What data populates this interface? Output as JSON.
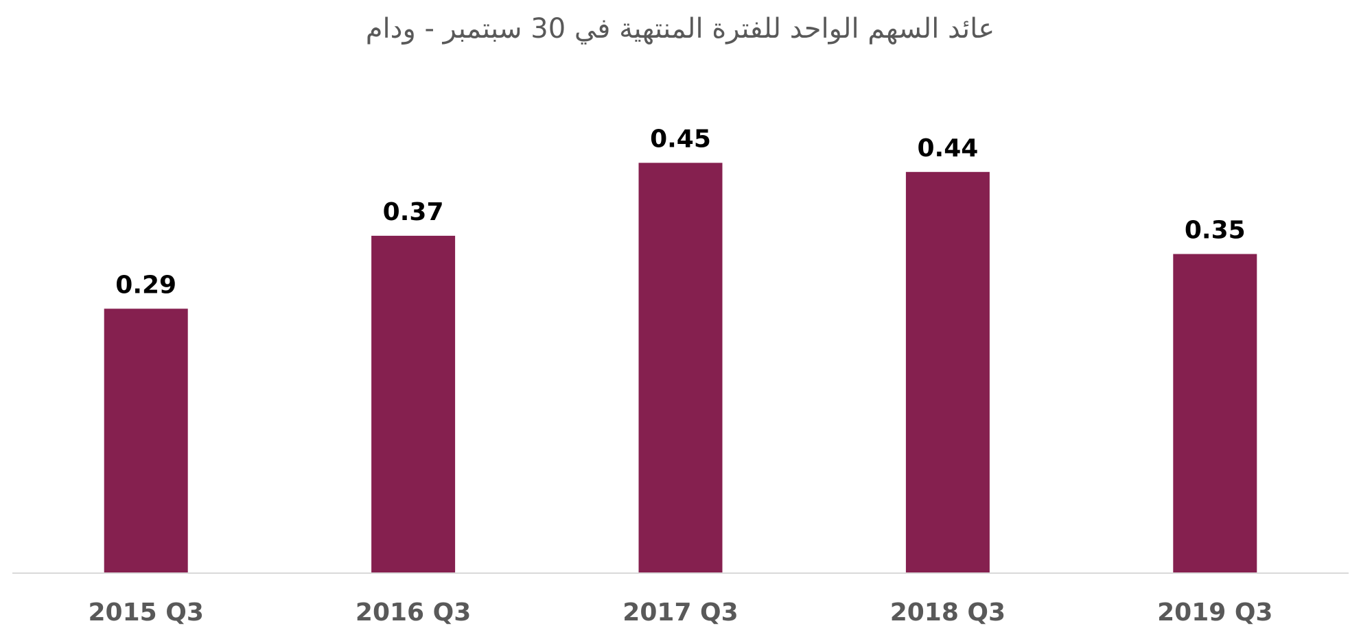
{
  "chart_data": {
    "type": "bar",
    "title": "عائد السهم الواحد للفترة المنتهية في 30 سبتمبر - ودام",
    "categories": [
      "2015 Q3",
      "2016 Q3",
      "2017 Q3",
      "2018 Q3",
      "2019 Q3"
    ],
    "values": [
      0.29,
      0.37,
      0.45,
      0.44,
      0.35
    ],
    "data_labels": [
      "0.29",
      "0.37",
      "0.45",
      "0.44",
      "0.35"
    ],
    "ylim": [
      0,
      0.5
    ],
    "grid": false,
    "legend": "none",
    "bar_color": "#85204F",
    "axis_color": "#D9D9D9",
    "title_color": "#595959",
    "tick_label_color": "#595959",
    "data_label_color": "#000000"
  }
}
